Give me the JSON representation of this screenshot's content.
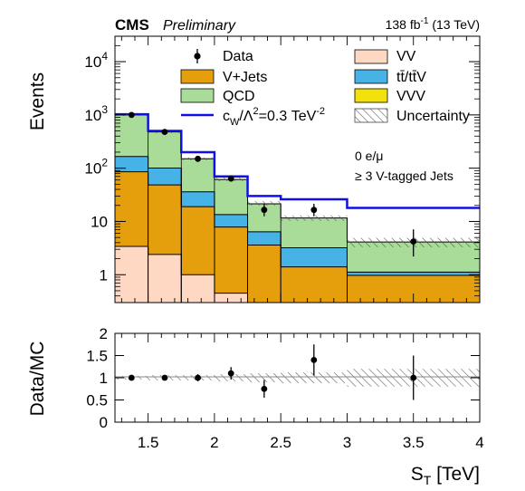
{
  "chart_data": {
    "type": "bar",
    "header": {
      "experiment": "CMS",
      "status": "Preliminary",
      "lumi_label": "138 fb",
      "lumi_exponent": "-1",
      "energy_label": "(13 TeV)"
    },
    "annotations": [
      "0 e/μ",
      "≥ 3 V-tagged Jets"
    ],
    "x_axis": {
      "label": "S",
      "label_sub": "T",
      "label_unit": "[TeV]",
      "range": [
        1.25,
        4.0
      ],
      "ticks": [
        "1.5",
        "2",
        "2.5",
        "3",
        "3.5",
        "4"
      ],
      "tick_values": [
        1.5,
        2.0,
        2.5,
        3.0,
        3.5,
        4.0
      ]
    },
    "y_axis_top": {
      "label": "Events",
      "scale": "log",
      "range": [
        0.3,
        30000
      ],
      "ticks": [
        {
          "value": 10000,
          "base": "10",
          "exp": "4"
        },
        {
          "value": 1000,
          "base": "10",
          "exp": "3"
        },
        {
          "value": 100,
          "base": "10",
          "exp": "2"
        },
        {
          "value": 10,
          "base": "10",
          "exp": ""
        },
        {
          "value": 1,
          "base": "1",
          "exp": ""
        }
      ]
    },
    "y_axis_bottom": {
      "label": "Data/MC",
      "range": [
        0,
        2
      ],
      "ticks": [
        "0",
        "0.5",
        "1",
        "1.5",
        "2"
      ],
      "tick_values": [
        0,
        0.5,
        1,
        1.5,
        2
      ]
    },
    "bin_edges": [
      1.25,
      1.5,
      1.75,
      2.0,
      2.25,
      2.5,
      3.0,
      4.0
    ],
    "stack": [
      {
        "name": "VV",
        "color": "#ffd8c4",
        "values": [
          3.4,
          2.4,
          1.0,
          0.45,
          0.3,
          0.2,
          0.12
        ]
      },
      {
        "name": "V+Jets",
        "color": "#e59f0c",
        "values": [
          82,
          46,
          18,
          7.4,
          3.3,
          1.2,
          0.85
        ]
      },
      {
        "name": "tt̄/tt̄V",
        "color": "#47b2e5",
        "values": [
          80,
          52,
          17,
          5.6,
          2.8,
          1.8,
          0.15
        ]
      },
      {
        "name": "VVV",
        "color": "#f3e10c",
        "values": [
          0,
          0,
          0,
          0,
          0,
          0,
          0
        ]
      },
      {
        "name": "QCD",
        "color": "#a8dc98",
        "values": [
          835,
          380,
          114,
          48,
          15,
          8.4,
          3.0
        ]
      }
    ],
    "stack_totals": [
      1000,
      480,
      150,
      62,
      22,
      11.6,
      4.1
    ],
    "signal": {
      "name": "c",
      "name_sub": "W",
      "name_rest": "/Λ",
      "name_sup": "2",
      "name_value": "=0.3 TeV",
      "name_value_sup": "-2",
      "color": "#1010e6",
      "values": [
        1030,
        500,
        200,
        70,
        30,
        26,
        18
      ]
    },
    "data": {
      "name": "Data",
      "x": [
        1.375,
        1.625,
        1.875,
        2.125,
        2.375,
        2.75,
        3.5
      ],
      "y": [
        1000,
        480,
        150,
        64,
        16.5,
        16.5,
        4.2
      ],
      "err_low": [
        32,
        22,
        12,
        8,
        4,
        4,
        2.0
      ],
      "err_high": [
        32,
        22,
        12,
        8,
        5,
        5,
        2.9
      ]
    },
    "uncertainty": {
      "name": "Uncertainty",
      "rel": [
        0.04,
        0.06,
        0.06,
        0.08,
        0.1,
        0.12,
        0.2
      ]
    },
    "ratio": {
      "x": [
        1.375,
        1.625,
        1.875,
        2.125,
        2.375,
        2.75,
        3.5
      ],
      "y": [
        1.0,
        1.0,
        1.0,
        1.1,
        0.75,
        1.4,
        1.0
      ],
      "err": [
        0.04,
        0.05,
        0.08,
        0.14,
        0.2,
        0.35,
        0.5
      ],
      "band_rel": [
        0.04,
        0.06,
        0.06,
        0.08,
        0.1,
        0.12,
        0.2
      ]
    },
    "legend": [
      {
        "key": "data",
        "label": "Data"
      },
      {
        "key": "vv",
        "label": "VV"
      },
      {
        "key": "vjets",
        "label": "V+Jets"
      },
      {
        "key": "ttbar",
        "label": "tt̄/tt̄V"
      },
      {
        "key": "qcd",
        "label": "QCD"
      },
      {
        "key": "vvv",
        "label": "VVV"
      },
      {
        "key": "signal",
        "label": "c_W/Λ^2=0.3 TeV^-2"
      },
      {
        "key": "unc",
        "label": "Uncertainty"
      }
    ],
    "legend_placement": "top",
    "grid": false
  }
}
